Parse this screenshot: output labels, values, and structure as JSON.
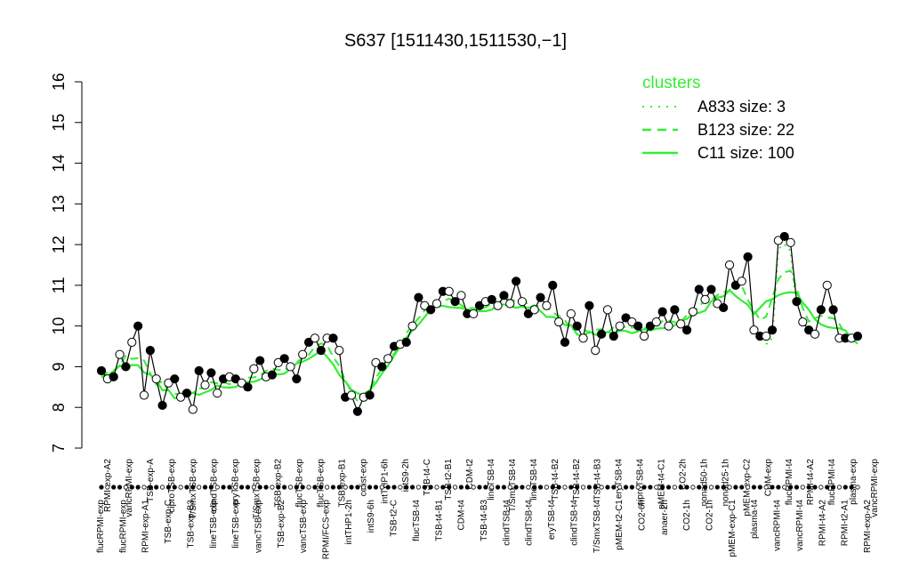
{
  "chart_data": {
    "type": "line",
    "title": "S637 [1511430,1511530,−1]",
    "xlabel": "",
    "ylabel": "",
    "ylim": [
      7,
      16
    ],
    "yticks": [
      7,
      8,
      9,
      10,
      11,
      12,
      13,
      14,
      15,
      16
    ],
    "grid": false,
    "legend": {
      "title": "clusters",
      "placement": "top-right",
      "entries": [
        {
          "label": "A833 size: 3",
          "style": "dotted"
        },
        {
          "label": "B123 size: 22",
          "style": "dashed"
        },
        {
          "label": "C11 size: 100",
          "style": "solid"
        }
      ]
    },
    "colors": {
      "clusters": "#33ee33",
      "points": "#000000"
    },
    "x_tick_labels_top": [
      "RPMI-exp-A2",
      "vancRPMI-exp",
      "TSB-exp-A",
      "ciproTSB-exp",
      "T/SmxTSB-exp",
      "clindTSB-exp",
      "eryTSB-exp",
      "T/SmxTSB-exp",
      "TSB-exp-B2",
      "flucTSB-exp",
      "flucTSB-exp",
      "TSB-exp-B1",
      "colist-exp",
      "intTHP1-6h",
      "intS9-2h",
      "TSB-t4-C",
      "TSB-t2-B1",
      "CDM-t2",
      "lineTSB-t4",
      "T/SmxTSB-t4",
      "lineTSB-t4",
      "TSB-t4-B2",
      "TSB-t4-B2",
      "TSB-t4-B3",
      "eryTSB-t4",
      "ciproTSB-t4",
      "pMEM-t4-C1",
      "CO2-2h",
      "nonad50-1h",
      "nonad25-1h",
      "pMEM-exp-C2",
      "CDM-exp",
      "flucRPMI-t4",
      "RPMI-t4-A2",
      "flucRPMI-t4",
      "plasma-exp",
      "vancRPMI-exp"
    ],
    "x_tick_labels_bottom": [
      "flucRPMI-exp",
      "flucRPMI-exp",
      "RPMI-exp-A1",
      "TSB-exp-C",
      "TSB-exp-B3",
      "lineTSB-exp",
      "lineTSB-exp",
      "vancTSB-exp",
      "TSB-exp-B2",
      "vancTSB-exp",
      "RPMI/FCS-exp",
      "intTHP1-2h",
      "intS9-6h",
      "TSB-t2-C",
      "flucTSB-t4",
      "TSB-t4-B1",
      "CDM-t4",
      "TSB-t4-B3",
      "clindTSB-t4",
      "clindTSB-t4",
      "eryTSB-t4",
      "clindTSB-t4",
      "T/SmxTSB-t4",
      "pMEM-t2-C1",
      "CO2-6h",
      "anaer-2h",
      "CO2-1h",
      "CO2-1h",
      "pMEM-exp-C1",
      "plasma-t4",
      "vancRPMI-t4",
      "vancRPMI-t4",
      "RPMI-t4-A2",
      "RPMI-t2-A1",
      "RPMI-exp-A2"
    ],
    "x": [
      1,
      2,
      3,
      4,
      5,
      6,
      7,
      8,
      9,
      10,
      11,
      12,
      13,
      14,
      15,
      16,
      17,
      18,
      19,
      20,
      21,
      22,
      23,
      24,
      25,
      26,
      27,
      28,
      29,
      30,
      31,
      32,
      33,
      34,
      35,
      36,
      37,
      38,
      39,
      40,
      41,
      42,
      43,
      44,
      45,
      46,
      47,
      48,
      49,
      50,
      51,
      52,
      53,
      54,
      55,
      56,
      57,
      58,
      59,
      60,
      61,
      62,
      63,
      64,
      65,
      66,
      67,
      68,
      69,
      70,
      71,
      72,
      73,
      74,
      75,
      76,
      77,
      78,
      79,
      80,
      81,
      82,
      83,
      84,
      85,
      86,
      87,
      88,
      89,
      90,
      91,
      92,
      93,
      94,
      95,
      96,
      97,
      98,
      99,
      100,
      101,
      102,
      103,
      104,
      105,
      106,
      107,
      108,
      109,
      110,
      111,
      112,
      113,
      114,
      115,
      116,
      117,
      118,
      119,
      120,
      121,
      122,
      123,
      124,
      125
    ],
    "series": [
      {
        "values": [
          8.9,
          8.7,
          8.75,
          9.3,
          9.0,
          9.6,
          10.0,
          8.3,
          9.4,
          8.7,
          8.05,
          8.6,
          8.7,
          8.25,
          8.35,
          7.95,
          8.9,
          8.55,
          8.85,
          8.35,
          8.7,
          8.75,
          8.7,
          8.6,
          8.5,
          8.95,
          9.15,
          8.75,
          8.8,
          9.1,
          9.2,
          9.0,
          8.7,
          9.3,
          9.6,
          9.7,
          9.4,
          9.7,
          9.7,
          9.4,
          8.25,
          8.3,
          7.9,
          8.25,
          8.3,
          9.1,
          9.0,
          9.2,
          9.5,
          9.55,
          9.6,
          10.0,
          10.7,
          10.5,
          10.4,
          10.55,
          10.85,
          10.85,
          10.6,
          10.75,
          10.3,
          10.3,
          10.5,
          10.6,
          10.65,
          10.5,
          10.75,
          10.55,
          11.1,
          10.6,
          10.3,
          10.4,
          10.7,
          10.5,
          11.0,
          10.1,
          9.6,
          10.3,
          10.0,
          9.7,
          10.5,
          9.4,
          9.8,
          10.4,
          9.75,
          10.0,
          10.2,
          10.1,
          10.0,
          9.75,
          10.0,
          10.1,
          10.35,
          10.0,
          10.4,
          10.05,
          9.9,
          10.35,
          10.9,
          10.65,
          10.9,
          10.55,
          10.45,
          11.5,
          11.0,
          11.1,
          11.7,
          9.9,
          9.75,
          9.75,
          9.9,
          12.1,
          12.2,
          12.05,
          10.6,
          10.1,
          9.9,
          9.8,
          10.4,
          11.0,
          10.4,
          9.7,
          9.7,
          9.7,
          9.75
        ]
      }
    ]
  }
}
